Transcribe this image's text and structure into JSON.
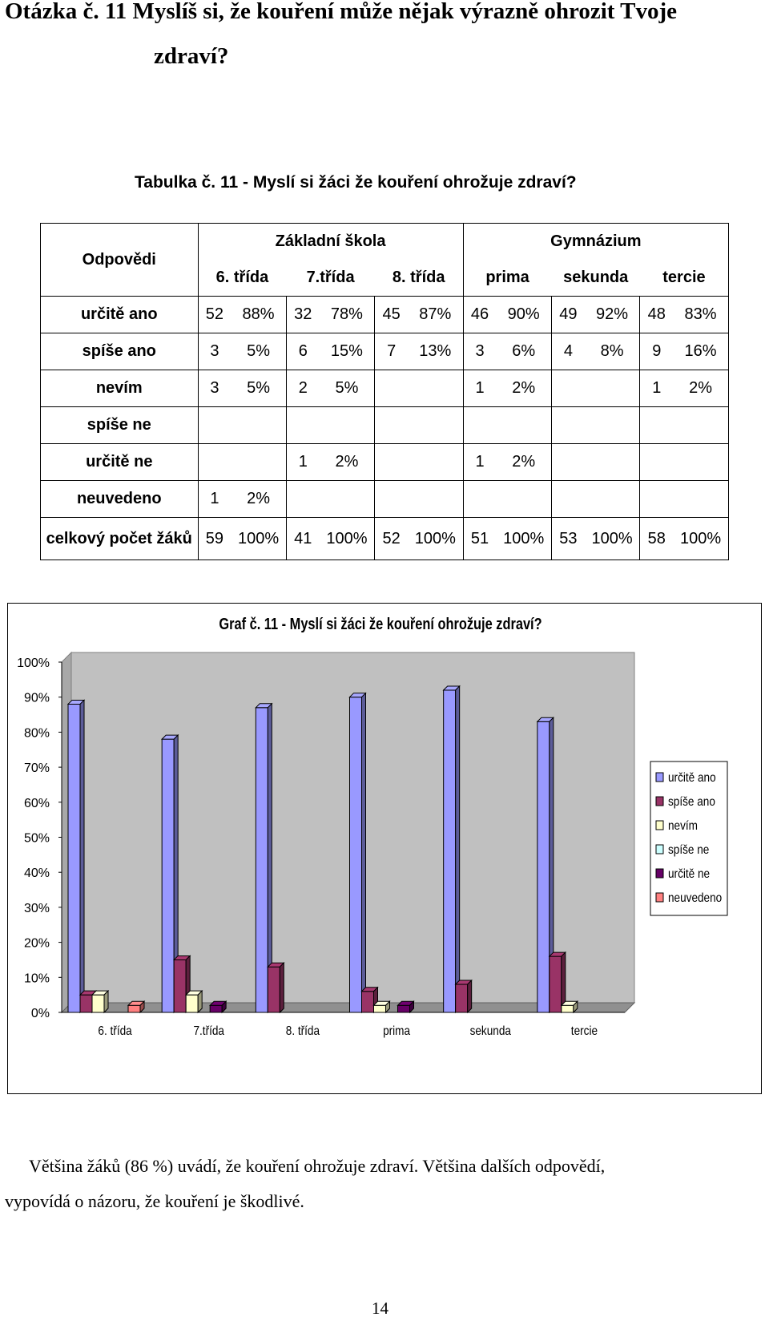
{
  "question": {
    "line1": "Otázka č. 11  Myslíš si, že kouření může nějak výrazně ohrozit Tvoje",
    "line2": "zdraví?"
  },
  "table": {
    "caption": "Tabulka č. 11 - Myslí si žáci že kouření ohrožuje zdraví?",
    "corner_label": "Odpovědi",
    "groups": [
      "Základní škola",
      "Gymnázium"
    ],
    "classes": [
      "6. třída",
      "7.třída",
      "8. třída",
      "prima",
      "sekunda",
      "tercie"
    ],
    "rows": [
      {
        "label": "určitě ano",
        "cells": [
          "52",
          "88%",
          "32",
          "78%",
          "45",
          "87%",
          "46",
          "90%",
          "49",
          "92%",
          "48",
          "83%"
        ]
      },
      {
        "label": "spíše ano",
        "cells": [
          "3",
          "5%",
          "6",
          "15%",
          "7",
          "13%",
          "3",
          "6%",
          "4",
          "8%",
          "9",
          "16%"
        ]
      },
      {
        "label": "nevím",
        "cells": [
          "3",
          "5%",
          "2",
          "5%",
          "",
          "",
          "1",
          "2%",
          "",
          "",
          "1",
          "2%"
        ]
      },
      {
        "label": "spíše ne",
        "cells": [
          "",
          "",
          "",
          "",
          "",
          "",
          "",
          "",
          "",
          "",
          "",
          ""
        ]
      },
      {
        "label": "určitě ne",
        "cells": [
          "",
          "",
          "1",
          "2%",
          "",
          "",
          "1",
          "2%",
          "",
          "",
          "",
          ""
        ]
      },
      {
        "label": "neuvedeno",
        "cells": [
          "1",
          "2%",
          "",
          "",
          "",
          "",
          "",
          "",
          "",
          "",
          "",
          ""
        ]
      },
      {
        "label": "celkový počet žáků",
        "cells": [
          "59",
          "100%",
          "41",
          "100%",
          "52",
          "100%",
          "51",
          "100%",
          "53",
          "100%",
          "58",
          "100%"
        ]
      }
    ]
  },
  "chart_data": {
    "type": "bar",
    "title": "Graf č. 11 - Myslí si žáci že kouření ohrožuje zdraví?",
    "categories": [
      "6. třída",
      "7.třída",
      "8. třída",
      "prima",
      "sekunda",
      "tercie"
    ],
    "series": [
      {
        "name": "určitě ano",
        "values": [
          88,
          78,
          87,
          90,
          92,
          83
        ],
        "color": "#9999ff"
      },
      {
        "name": "spíše ano",
        "values": [
          5,
          15,
          13,
          6,
          8,
          16
        ],
        "color": "#993366"
      },
      {
        "name": "nevím",
        "values": [
          5,
          5,
          0,
          2,
          0,
          2
        ],
        "color": "#ffffcc"
      },
      {
        "name": "spíše ne",
        "values": [
          0,
          0,
          0,
          0,
          0,
          0
        ],
        "color": "#ccffff"
      },
      {
        "name": "určitě ne",
        "values": [
          0,
          2,
          0,
          2,
          0,
          0
        ],
        "color": "#660066"
      },
      {
        "name": "neuvedeno",
        "values": [
          2,
          0,
          0,
          0,
          0,
          0
        ],
        "color": "#ff8080"
      }
    ],
    "y_ticks": [
      "0%",
      "10%",
      "20%",
      "30%",
      "40%",
      "50%",
      "60%",
      "70%",
      "80%",
      "90%",
      "100%"
    ],
    "ylim": [
      0,
      100
    ],
    "legend_position": "right",
    "grid": false
  },
  "summary": {
    "line1": "Většina žáků (86 %) uvádí, že kouření ohrožuje zdraví. Většina dalších odpovědí,",
    "line2": "vypovídá o názoru, že kouření je škodlivé."
  },
  "page_number": "14"
}
